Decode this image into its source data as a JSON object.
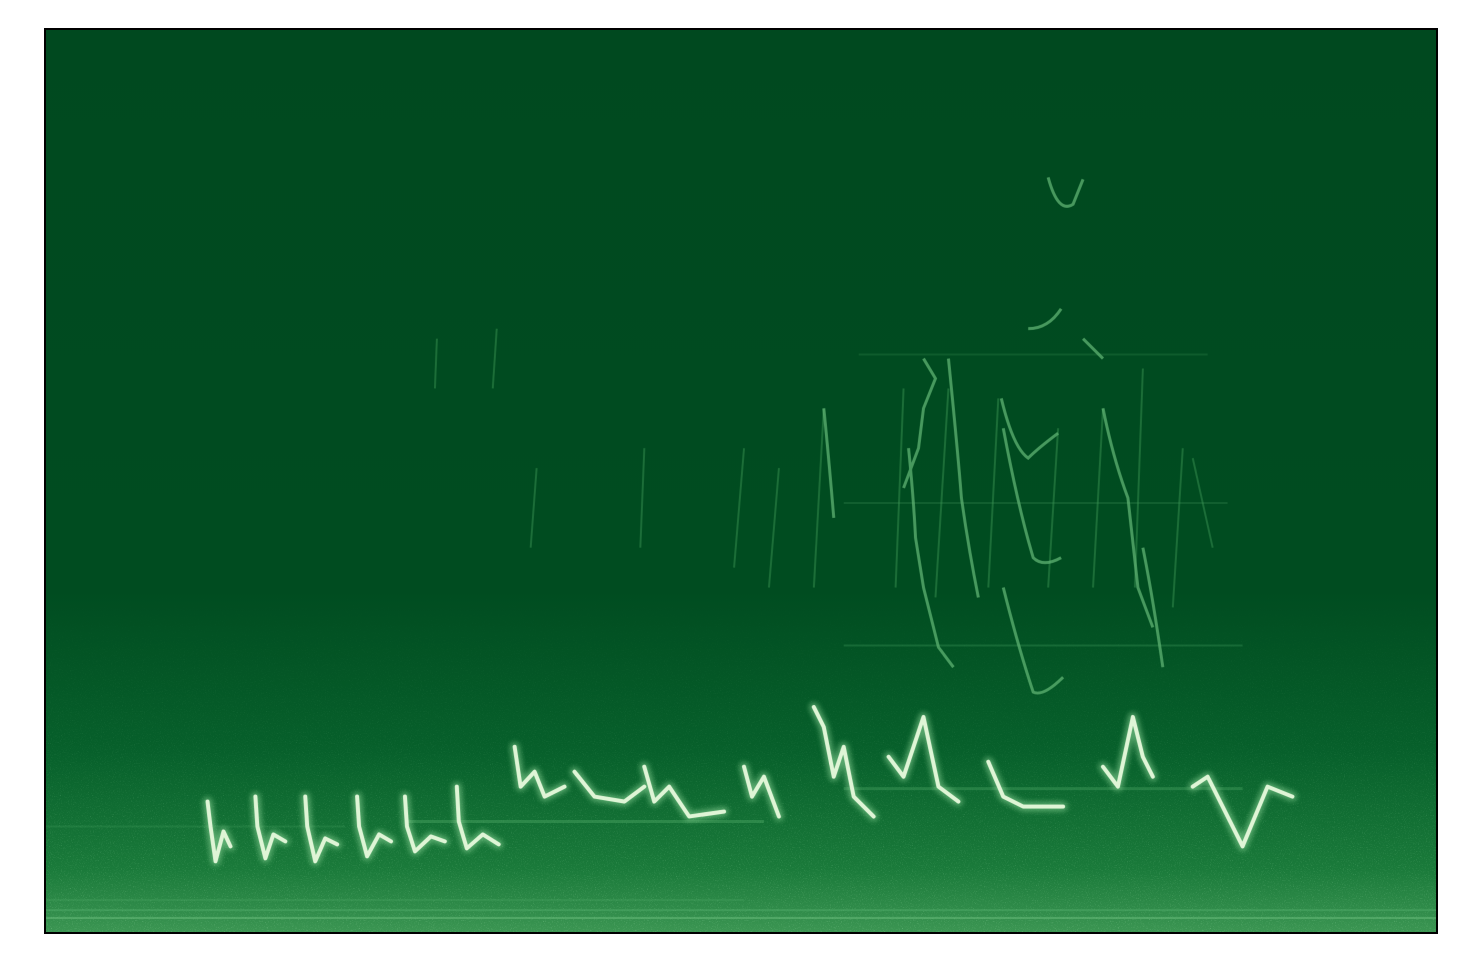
{
  "figure": {
    "kind": "spectrogram",
    "axes_visible": false,
    "colormap": "Greens",
    "colors": {
      "background": "#00491f",
      "low_energy": "#005a27",
      "mid_energy": "#3f9a58",
      "high_energy": "#c9efc0",
      "peak_energy": "#f2fbef",
      "frame": "#000000"
    }
  }
}
